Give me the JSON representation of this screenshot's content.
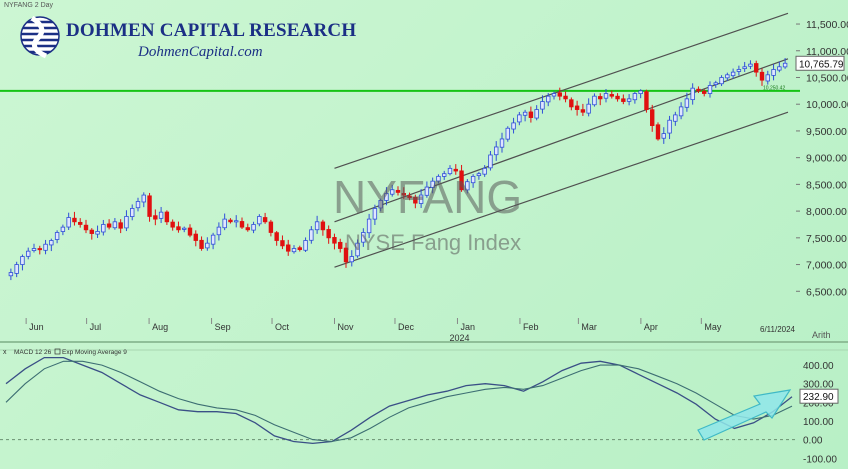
{
  "header": {
    "symbol_label": "NYFANG 2 Day",
    "brand_name": "DOHMEN CAPITAL RESEARCH",
    "brand_site": "DohmenCapital.com",
    "watermark_symbol": "NYFANG",
    "watermark_name": "NYSE Fang Index",
    "last_price": "10,765.79",
    "line_price_tag": "10,250.42",
    "date_tag": "6/11/2024",
    "scale_mode": "Arith",
    "year_label": "2024",
    "macd_label": "MACD 12 26",
    "macd_ema_label": "Exp Moving Average 9",
    "macd_close_symbol": "x",
    "macd_last": "232.90"
  },
  "colors": {
    "up": "#2f4fd8",
    "down": "#e01010",
    "channel": "#505050",
    "support": "#16c316",
    "macd_line": "#3a4f86",
    "signal_line": "#3d6e73",
    "arrow_fill": "#8fe6ea",
    "arrow_stroke": "#3fb9c6"
  },
  "chart_data": [
    {
      "type": "candlestick",
      "title": "NYFANG",
      "subtitle": "NYSE Fang Index",
      "y_ticks": [
        "6,500.00",
        "7,000.00",
        "7,500.00",
        "8,000.00",
        "8,500.00",
        "9,000.00",
        "9,500.00",
        "10,000.00",
        "10,500.00",
        "11,000.00",
        "11,500.00"
      ],
      "ylim": [
        6000,
        11800
      ],
      "x_ticks": [
        "Jun",
        "Jul",
        "Aug",
        "Sep",
        "Oct",
        "Nov",
        "Dec",
        "Jan",
        "Feb",
        "Mar",
        "Apr",
        "May"
      ],
      "x_range": [
        "2023-05-23",
        "2024-06-13"
      ],
      "closes": [
        6850,
        7000,
        7150,
        7250,
        7300,
        7280,
        7380,
        7450,
        7600,
        7700,
        7880,
        7800,
        7750,
        7650,
        7580,
        7620,
        7750,
        7700,
        7800,
        7680,
        7900,
        8050,
        8180,
        8300,
        7900,
        7850,
        7980,
        7800,
        7700,
        7650,
        7680,
        7550,
        7450,
        7300,
        7400,
        7550,
        7700,
        7850,
        7800,
        7820,
        7700,
        7650,
        7750,
        7900,
        7800,
        7600,
        7450,
        7350,
        7250,
        7300,
        7280,
        7450,
        7650,
        7800,
        7650,
        7500,
        7400,
        7300,
        7050,
        7150,
        7400,
        7600,
        7850,
        8050,
        8200,
        8330,
        8400,
        8350,
        8300,
        8250,
        8150,
        8300,
        8450,
        8560,
        8650,
        8700,
        8800,
        8750,
        8400,
        8550,
        8650,
        8700,
        8800,
        9050,
        9200,
        9350,
        9550,
        9650,
        9800,
        9850,
        9750,
        9900,
        10050,
        10150,
        10200,
        10150,
        10100,
        9950,
        9900,
        9850,
        10000,
        10150,
        10100,
        10200,
        10150,
        10100,
        10050,
        10100,
        10200,
        10250,
        9900,
        9600,
        9350,
        9450,
        9700,
        9800,
        9950,
        10100,
        10300,
        10250,
        10200,
        10350,
        10400,
        10500,
        10550,
        10600,
        10650,
        10700,
        10750,
        10600,
        10450,
        10550,
        10650,
        10700,
        10766
      ],
      "channel": {
        "upper": {
          "start": [
            "2023-11-01",
            8800
          ],
          "end": [
            "2024-06-13",
            11700
          ]
        },
        "middle": {
          "start": [
            "2023-11-01",
            7800
          ],
          "end": [
            "2024-06-13",
            10850
          ]
        },
        "lower": {
          "start": [
            "2023-11-01",
            6950
          ],
          "end": [
            "2024-06-13",
            9850
          ]
        }
      },
      "support_level": 10250,
      "last_value": 10765.79
    },
    {
      "type": "line",
      "title": "MACD 12 26",
      "y_ticks": [
        "-100.00",
        "0.00",
        "100.00",
        "200.00",
        "300.00",
        "400.00"
      ],
      "ylim": [
        -120,
        470
      ],
      "series": [
        {
          "name": "MACD 12 26",
          "values": [
            300,
            380,
            440,
            440,
            400,
            360,
            300,
            240,
            200,
            160,
            150,
            150,
            140,
            90,
            20,
            -10,
            -20,
            -10,
            50,
            120,
            180,
            210,
            240,
            260,
            290,
            300,
            290,
            260,
            310,
            370,
            410,
            420,
            400,
            350,
            300,
            250,
            190,
            110,
            60,
            90,
            150,
            230
          ]
        },
        {
          "name": "Exp Moving Average 9",
          "values": [
            200,
            300,
            380,
            420,
            420,
            400,
            360,
            310,
            260,
            220,
            190,
            170,
            160,
            130,
            80,
            40,
            0,
            -10,
            10,
            60,
            120,
            170,
            200,
            230,
            250,
            270,
            280,
            270,
            290,
            330,
            370,
            400,
            400,
            380,
            340,
            300,
            250,
            190,
            130,
            110,
            130,
            180
          ]
        }
      ],
      "last_value": 232.9,
      "annotation": "upward arrow"
    }
  ]
}
